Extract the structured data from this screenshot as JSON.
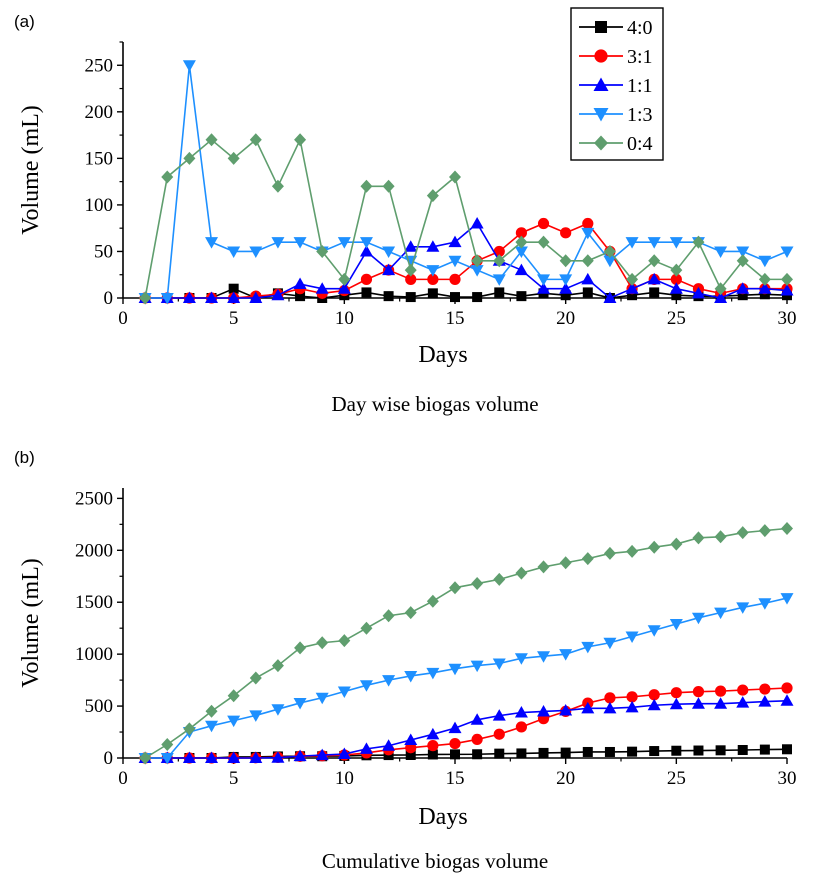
{
  "chart_data": [
    {
      "type": "line",
      "panel_label": "(a)",
      "caption": "Day wise biogas volume",
      "xlabel": "Days",
      "ylabel": "Volume (mL)",
      "xlim": [
        0,
        30
      ],
      "ylim": [
        0,
        275
      ],
      "xticks": [
        0,
        5,
        10,
        15,
        20,
        25,
        30
      ],
      "yticks": [
        0,
        50,
        100,
        150,
        200,
        250
      ],
      "grid": false,
      "legend_position": "top-right",
      "x": [
        1,
        2,
        3,
        4,
        5,
        6,
        7,
        8,
        9,
        10,
        11,
        12,
        13,
        14,
        15,
        16,
        17,
        18,
        19,
        20,
        21,
        22,
        23,
        24,
        25,
        26,
        27,
        28,
        29,
        30
      ],
      "series": [
        {
          "name": "4:0",
          "color": "#000000",
          "marker": "square",
          "values": [
            0,
            0,
            0,
            0,
            10,
            0,
            5,
            2,
            0,
            3,
            6,
            2,
            1,
            5,
            1,
            1,
            6,
            2,
            5,
            3,
            6,
            0,
            3,
            6,
            3,
            2,
            2,
            3,
            4,
            3
          ]
        },
        {
          "name": "3:1",
          "color": "#ff0000",
          "marker": "circle",
          "values": [
            0,
            0,
            0,
            0,
            0,
            2,
            4,
            10,
            5,
            8,
            20,
            30,
            20,
            20,
            20,
            40,
            50,
            70,
            80,
            70,
            80,
            50,
            10,
            20,
            20,
            10,
            5,
            10,
            10,
            10
          ]
        },
        {
          "name": "1:1",
          "color": "#0000ff",
          "marker": "triangle-up",
          "values": [
            0,
            0,
            0,
            0,
            0,
            0,
            3,
            15,
            10,
            10,
            50,
            30,
            55,
            55,
            60,
            80,
            40,
            30,
            10,
            10,
            20,
            0,
            10,
            20,
            10,
            5,
            0,
            10,
            10,
            8
          ]
        },
        {
          "name": "1:3",
          "color": "#1e90ff",
          "marker": "triangle-down",
          "values": [
            0,
            0,
            250,
            60,
            50,
            50,
            60,
            60,
            50,
            60,
            60,
            50,
            40,
            30,
            40,
            30,
            20,
            50,
            20,
            20,
            70,
            40,
            60,
            60,
            60,
            60,
            50,
            50,
            40,
            50
          ]
        },
        {
          "name": "0:4",
          "color": "#5f9e6e",
          "marker": "diamond",
          "values": [
            0,
            130,
            150,
            170,
            150,
            170,
            120,
            170,
            50,
            20,
            120,
            120,
            30,
            110,
            130,
            40,
            40,
            60,
            60,
            40,
            40,
            50,
            20,
            40,
            30,
            60,
            10,
            40,
            20,
            20
          ]
        }
      ]
    },
    {
      "type": "line",
      "panel_label": "(b)",
      "caption": "Cumulative biogas volume",
      "xlabel": "Days",
      "ylabel": "Volume (mL)",
      "xlim": [
        0,
        30
      ],
      "ylim": [
        0,
        2600
      ],
      "xticks": [
        0,
        5,
        10,
        15,
        20,
        25,
        30
      ],
      "yticks": [
        0,
        500,
        1000,
        1500,
        2000,
        2500
      ],
      "grid": false,
      "x": [
        1,
        2,
        3,
        4,
        5,
        6,
        7,
        8,
        9,
        10,
        11,
        12,
        13,
        14,
        15,
        16,
        17,
        18,
        19,
        20,
        21,
        22,
        23,
        24,
        25,
        26,
        27,
        28,
        29,
        30
      ],
      "series": [
        {
          "name": "4:0",
          "color": "#000000",
          "marker": "square",
          "values": [
            0,
            0,
            0,
            0,
            10,
            10,
            15,
            17,
            17,
            20,
            26,
            28,
            29,
            34,
            35,
            36,
            42,
            44,
            49,
            52,
            58,
            58,
            61,
            67,
            70,
            72,
            74,
            77,
            81,
            84
          ]
        },
        {
          "name": "3:1",
          "color": "#ff0000",
          "marker": "circle",
          "values": [
            0,
            0,
            0,
            0,
            0,
            2,
            6,
            16,
            21,
            29,
            49,
            79,
            99,
            119,
            139,
            179,
            229,
            299,
            379,
            449,
            529,
            579,
            589,
            609,
            629,
            639,
            644,
            654,
            664,
            674
          ]
        },
        {
          "name": "1:1",
          "color": "#0000ff",
          "marker": "triangle-up",
          "values": [
            0,
            0,
            0,
            0,
            0,
            0,
            3,
            18,
            28,
            38,
            88,
            118,
            173,
            228,
            288,
            368,
            408,
            438,
            448,
            458,
            478,
            478,
            488,
            508,
            518,
            523,
            523,
            533,
            543,
            551
          ]
        },
        {
          "name": "1:3",
          "color": "#1e90ff",
          "marker": "triangle-down",
          "values": [
            0,
            0,
            250,
            310,
            360,
            410,
            470,
            530,
            580,
            640,
            700,
            750,
            790,
            820,
            860,
            890,
            910,
            960,
            980,
            1000,
            1070,
            1110,
            1170,
            1230,
            1290,
            1350,
            1400,
            1450,
            1490,
            1540
          ]
        },
        {
          "name": "0:4",
          "color": "#5f9e6e",
          "marker": "diamond",
          "values": [
            0,
            130,
            280,
            450,
            600,
            770,
            890,
            1060,
            1110,
            1130,
            1250,
            1370,
            1400,
            1510,
            1640,
            1680,
            1720,
            1780,
            1840,
            1880,
            1920,
            1970,
            1990,
            2030,
            2060,
            2120,
            2130,
            2170,
            2190,
            2210
          ]
        }
      ]
    }
  ]
}
